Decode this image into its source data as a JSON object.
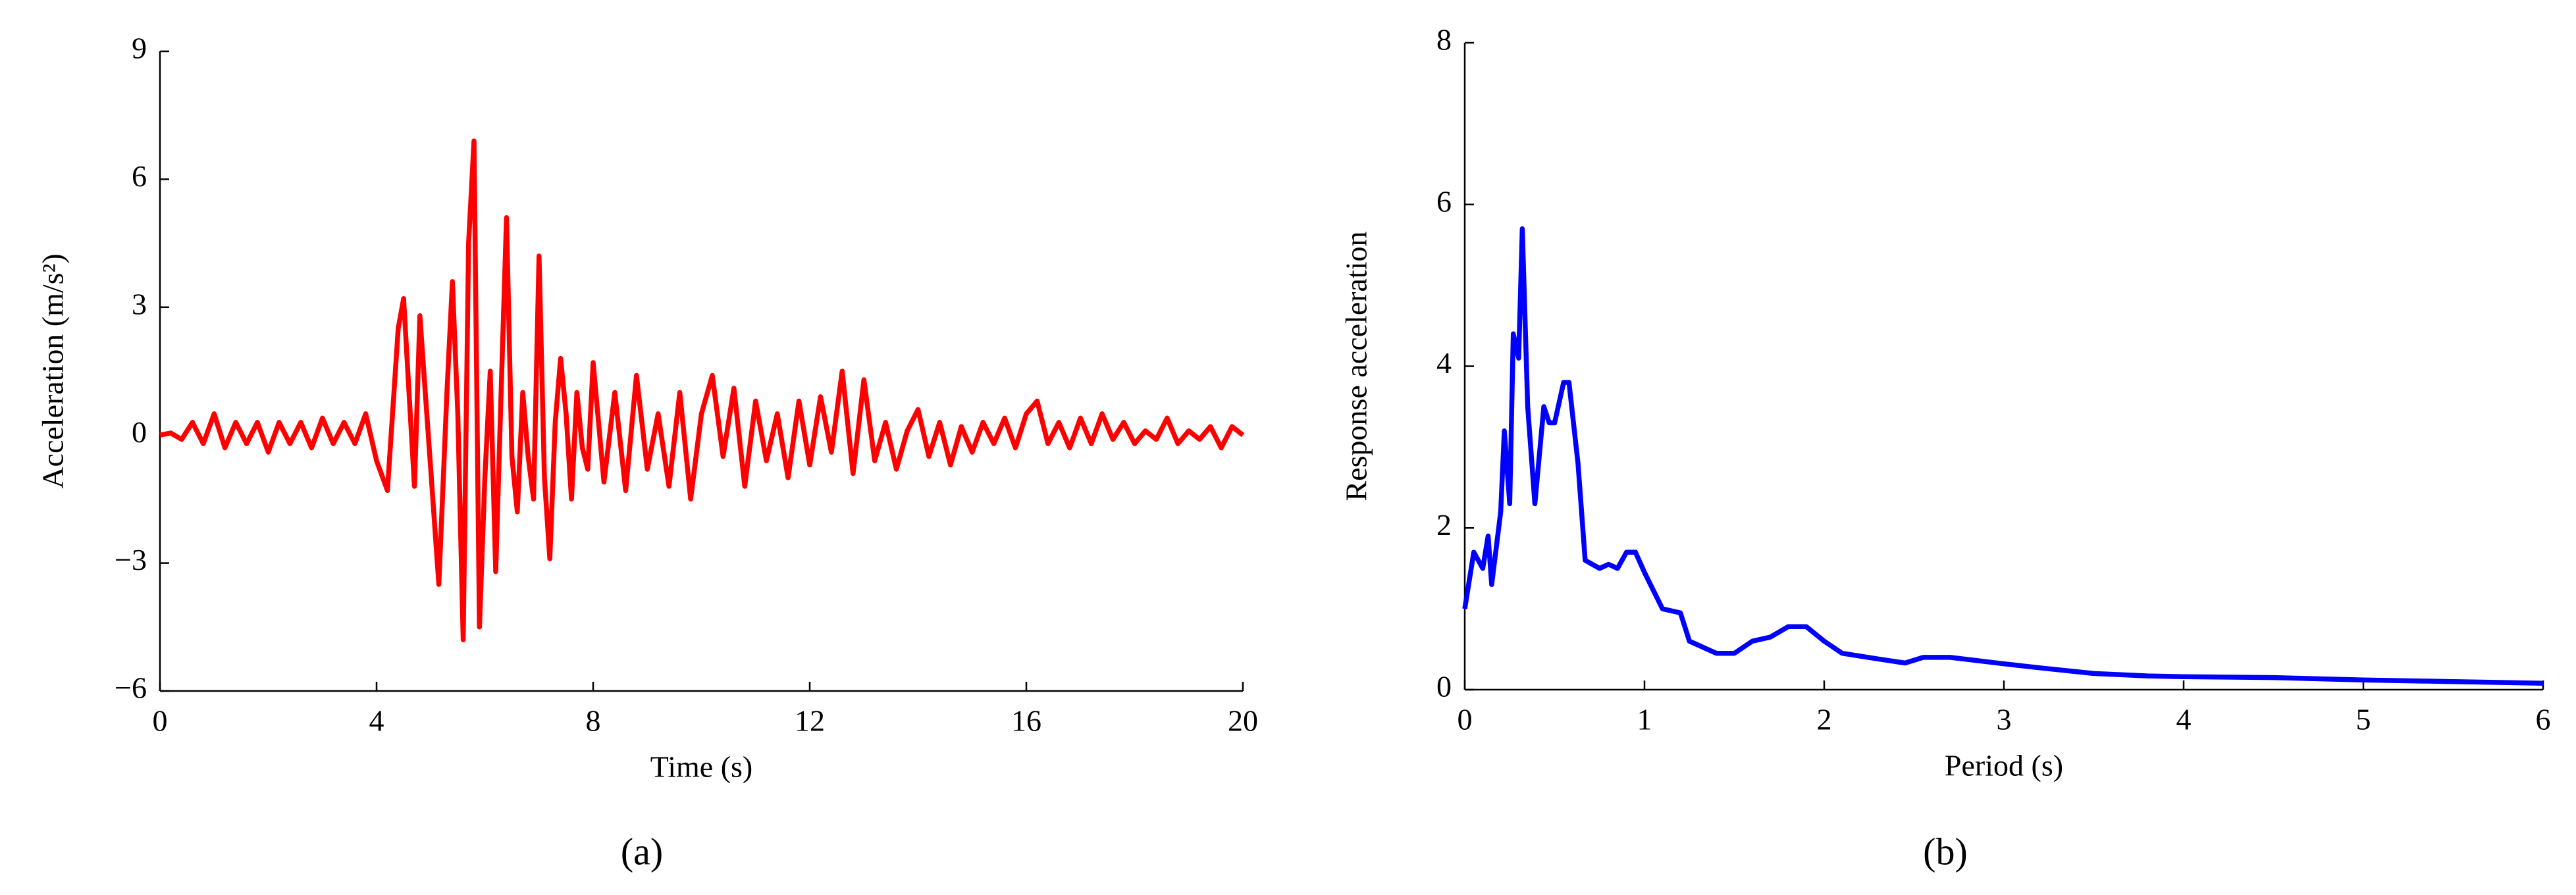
{
  "chart_data": [
    {
      "type": "line",
      "panel_label": "(a)",
      "xlabel": "Time (s)",
      "ylabel": "Acceleration (m/s²)",
      "xlim": [
        0,
        20
      ],
      "xticks": [
        0,
        4,
        8,
        12,
        16,
        20
      ],
      "ylim": [
        -6,
        9
      ],
      "yticks": [
        {
          "value": -6,
          "label": "−6"
        },
        {
          "value": -3,
          "label": "−3"
        },
        0,
        3,
        6,
        9
      ],
      "x": [
        0,
        0.2,
        0.4,
        0.6,
        0.8,
        1.0,
        1.2,
        1.4,
        1.6,
        1.8,
        2.0,
        2.2,
        2.4,
        2.6,
        2.8,
        3.0,
        3.2,
        3.4,
        3.6,
        3.8,
        4.0,
        4.2,
        4.4,
        4.5,
        4.6,
        4.7,
        4.8,
        4.9,
        5.0,
        5.15,
        5.3,
        5.4,
        5.5,
        5.6,
        5.7,
        5.8,
        5.9,
        6.0,
        6.1,
        6.2,
        6.3,
        6.4,
        6.5,
        6.6,
        6.7,
        6.8,
        6.9,
        7.0,
        7.1,
        7.2,
        7.3,
        7.4,
        7.5,
        7.6,
        7.7,
        7.8,
        7.9,
        8.0,
        8.2,
        8.4,
        8.6,
        8.8,
        9.0,
        9.2,
        9.4,
        9.6,
        9.8,
        10.0,
        10.2,
        10.4,
        10.6,
        10.8,
        11.0,
        11.2,
        11.4,
        11.6,
        11.8,
        12.0,
        12.2,
        12.4,
        12.6,
        12.8,
        13.0,
        13.2,
        13.4,
        13.6,
        13.8,
        14.0,
        14.2,
        14.4,
        14.6,
        14.8,
        15.0,
        15.2,
        15.4,
        15.6,
        15.8,
        16.0,
        16.2,
        16.4,
        16.6,
        16.8,
        17.0,
        17.2,
        17.4,
        17.6,
        17.8,
        18.0,
        18.2,
        18.4,
        18.6,
        18.8,
        19.0,
        19.2,
        19.4,
        19.6,
        19.8,
        20.0
      ],
      "series": [
        {
          "color": "#ff0000",
          "values": [
            0,
            0.05,
            -0.1,
            0.3,
            -0.2,
            0.5,
            -0.3,
            0.3,
            -0.2,
            0.3,
            -0.4,
            0.3,
            -0.2,
            0.3,
            -0.3,
            0.4,
            -0.2,
            0.3,
            -0.2,
            0.5,
            -0.6,
            -1.3,
            2.5,
            3.2,
            1.0,
            -1.2,
            2.8,
            1.0,
            -0.8,
            -3.5,
            1.0,
            3.6,
            0.5,
            -4.8,
            4.5,
            6.9,
            -4.5,
            -1.0,
            1.5,
            -3.2,
            1.0,
            5.1,
            -0.5,
            -1.8,
            1.0,
            -0.5,
            -1.5,
            4.2,
            -1.0,
            -2.9,
            0.3,
            1.8,
            0.5,
            -1.5,
            1.0,
            -0.3,
            -0.8,
            1.7,
            -1.1,
            1.0,
            -1.3,
            1.4,
            -0.8,
            0.5,
            -1.2,
            1.0,
            -1.5,
            0.5,
            1.4,
            -0.5,
            1.1,
            -1.2,
            0.8,
            -0.6,
            0.5,
            -1.0,
            0.8,
            -0.7,
            0.9,
            -0.4,
            1.5,
            -0.9,
            1.3,
            -0.6,
            0.3,
            -0.8,
            0.1,
            0.6,
            -0.5,
            0.3,
            -0.7,
            0.2,
            -0.4,
            0.3,
            -0.2,
            0.4,
            -0.3,
            0.5,
            0.8,
            -0.2,
            0.3,
            -0.3,
            0.4,
            -0.2,
            0.5,
            -0.1,
            0.3,
            -0.2,
            0.1,
            -0.1,
            0.4,
            -0.2,
            0.1,
            -0.1,
            0.2,
            -0.3,
            0.2,
            0.0
          ]
        }
      ]
    },
    {
      "type": "line",
      "panel_label": "(b)",
      "xlabel": "Period (s)",
      "ylabel": "Response acceleration",
      "xlim": [
        0,
        6
      ],
      "xticks": [
        0,
        1,
        2,
        3,
        4,
        5,
        6
      ],
      "ylim": [
        0,
        8
      ],
      "yticks": [
        0,
        2,
        4,
        6,
        8
      ],
      "x": [
        0,
        0.05,
        0.1,
        0.13,
        0.15,
        0.2,
        0.22,
        0.25,
        0.27,
        0.3,
        0.32,
        0.35,
        0.39,
        0.44,
        0.47,
        0.5,
        0.55,
        0.58,
        0.63,
        0.67,
        0.75,
        0.8,
        0.85,
        0.9,
        0.95,
        1.0,
        1.1,
        1.2,
        1.25,
        1.4,
        1.5,
        1.6,
        1.7,
        1.8,
        1.9,
        2.0,
        2.1,
        2.3,
        2.45,
        2.55,
        2.7,
        3.0,
        3.2,
        3.5,
        3.8,
        4.0,
        4.5,
        5.0,
        5.5,
        6.0
      ],
      "series": [
        {
          "color": "#0000ff",
          "values": [
            1.0,
            1.7,
            1.5,
            1.9,
            1.3,
            2.2,
            3.2,
            2.3,
            4.4,
            4.1,
            5.7,
            3.5,
            2.3,
            3.5,
            3.3,
            3.3,
            3.8,
            3.8,
            2.8,
            1.6,
            1.5,
            1.55,
            1.5,
            1.7,
            1.7,
            1.45,
            1.0,
            0.95,
            0.6,
            0.45,
            0.45,
            0.6,
            0.65,
            0.78,
            0.78,
            0.6,
            0.45,
            0.38,
            0.33,
            0.4,
            0.4,
            0.32,
            0.27,
            0.2,
            0.17,
            0.16,
            0.15,
            0.12,
            0.1,
            0.08
          ]
        }
      ]
    }
  ]
}
